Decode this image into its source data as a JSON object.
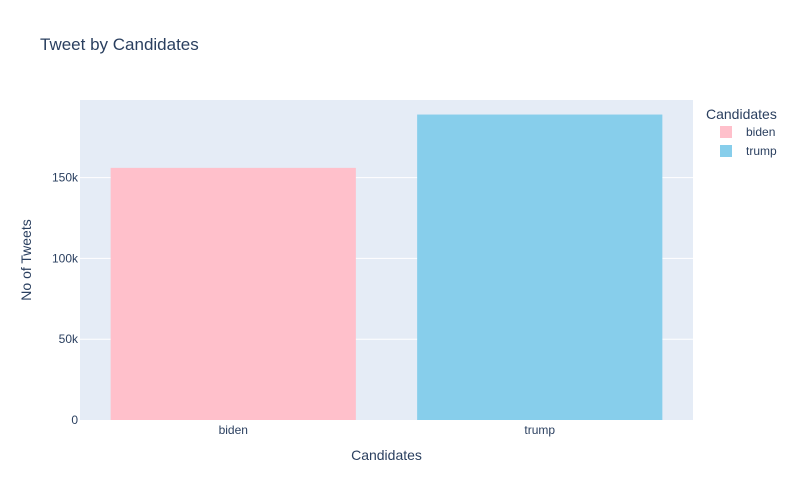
{
  "chart_data": {
    "type": "bar",
    "title": "Tweet by Candidates",
    "xlabel": "Candidates",
    "ylabel": "No of Tweets",
    "categories": [
      "biden",
      "trump"
    ],
    "values": [
      156000,
      189000
    ],
    "ylim": [
      0,
      198000
    ],
    "yticks": [
      0,
      50000,
      100000,
      150000
    ],
    "ytick_labels": [
      "0",
      "50k",
      "100k",
      "150k"
    ],
    "grid": true,
    "legend": {
      "title": "Candidates",
      "position": "top-right",
      "entries": [
        "biden",
        "trump"
      ]
    },
    "colors": {
      "biden": "#ffc0cb",
      "trump": "#87ceeb",
      "plot_background": "#e5ecf6",
      "gridline": "#ffffff",
      "text": "#2a3f5f"
    }
  }
}
